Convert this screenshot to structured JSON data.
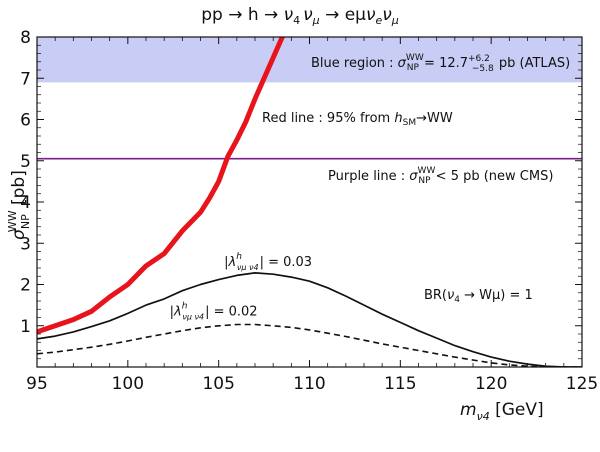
{
  "chart_data": {
    "type": "line",
    "title": "pp → h → ν₄ ν_μ → eμν_e ν_μ",
    "xlabel": "m_ν₄ [GeV]",
    "ylabel": "σ_NP^WW [pb]",
    "xlim": [
      95,
      125
    ],
    "ylim": [
      0,
      8
    ],
    "xticks": [
      95,
      100,
      105,
      110,
      115,
      120,
      125
    ],
    "yticks": [
      1,
      2,
      3,
      4,
      5,
      6,
      7,
      8
    ],
    "bands": [
      {
        "name": "Blue region",
        "y_low": 6.9,
        "y_high": 8.0,
        "color": "#c9ccf4",
        "label": "Blue region : σ_NP^WW = 12.7 +6.2 −5.8 pb (ATLAS)",
        "label_parts": {
          "prefix": "Blue region : ",
          "sym": "σ",
          "sub": "NP",
          "sup": "WW",
          "eq": " = 12.7",
          "up": "+6.2",
          "down": "−5.8",
          "suffix": " pb (ATLAS)"
        }
      }
    ],
    "hlines": [
      {
        "name": "Purple line",
        "y": 5.05,
        "color": "#7a1f86",
        "label": "Purple line : σ_NP^WW < 5 pb (new CMS)",
        "label_parts": {
          "prefix": "Purple line : ",
          "sym": "σ",
          "sub": "NP",
          "sup": "WW",
          "suffix": " < 5 pb (new CMS)"
        }
      }
    ],
    "series": [
      {
        "name": "Red line",
        "color": "#e8141b",
        "style": "solid-thick",
        "label": "Red line : 95% from h_SM → WW",
        "label_parts": {
          "prefix": "Red line : 95% from ",
          "sym": "h",
          "sub": "SM",
          "suffix": "→WW"
        },
        "x": [
          95,
          96,
          97,
          98,
          99,
          100,
          101,
          102,
          103,
          104,
          104.5,
          105,
          105.5,
          106,
          106.5,
          107,
          107.5,
          108,
          108.5
        ],
        "y": [
          0.85,
          1.0,
          1.15,
          1.35,
          1.7,
          2.0,
          2.45,
          2.75,
          3.3,
          3.75,
          4.1,
          4.5,
          5.1,
          5.5,
          5.95,
          6.5,
          7.0,
          7.5,
          8.0
        ]
      },
      {
        "name": "|λ| = 0.03",
        "color": "#111111",
        "style": "solid",
        "label": "|λ^h_νμ ν4| = 0.03",
        "label_parts": {
          "sym": "λ",
          "sup": "h",
          "sub": "νμ ν4",
          "suffix": "| = 0.03"
        },
        "x": [
          95,
          96,
          97,
          98,
          99,
          100,
          101,
          102,
          103,
          104,
          105,
          106,
          107,
          108,
          109,
          110,
          111,
          112,
          113,
          114,
          115,
          116,
          117,
          118,
          119,
          120,
          121,
          122,
          123,
          124,
          125
        ],
        "y": [
          0.68,
          0.75,
          0.85,
          0.98,
          1.12,
          1.3,
          1.5,
          1.65,
          1.85,
          2.0,
          2.12,
          2.22,
          2.28,
          2.25,
          2.18,
          2.08,
          1.92,
          1.72,
          1.5,
          1.28,
          1.08,
          0.88,
          0.7,
          0.52,
          0.37,
          0.24,
          0.14,
          0.07,
          0.02,
          0.0,
          0.0
        ],
        "label_x": 105.3,
        "label_y": 2.45
      },
      {
        "name": "|λ| = 0.02",
        "color": "#111111",
        "style": "dashed",
        "label": "|λ^h_νμ ν4| = 0.02",
        "label_parts": {
          "sym": "λ",
          "sup": "h",
          "sub": "νμ ν4",
          "suffix": "| = 0.02"
        },
        "x": [
          95,
          96,
          97,
          98,
          99,
          100,
          101,
          102,
          103,
          104,
          105,
          106,
          107,
          108,
          109,
          110,
          111,
          112,
          113,
          114,
          115,
          116,
          117,
          118,
          119,
          120,
          121,
          122,
          123,
          124,
          125
        ],
        "y": [
          0.32,
          0.36,
          0.42,
          0.48,
          0.55,
          0.63,
          0.72,
          0.8,
          0.88,
          0.95,
          1.0,
          1.03,
          1.03,
          1.0,
          0.96,
          0.9,
          0.82,
          0.74,
          0.65,
          0.56,
          0.48,
          0.4,
          0.32,
          0.24,
          0.17,
          0.1,
          0.05,
          0.02,
          0.0,
          0.0,
          0.0
        ],
        "label_x": 102.3,
        "label_y": 1.25
      }
    ],
    "annotations": [
      {
        "text": "BR(ν4 → Wμ) = 1",
        "parts": {
          "prefix": "BR(",
          "sym": "ν",
          "sub": "4",
          "suffix": " → Wμ) = 1"
        },
        "x": 116.3,
        "y": 1.65
      }
    ],
    "title_parts": {
      "lead": "pp → h → ",
      "nu4": "ν",
      "nu4_sub": "4",
      "num": "ν",
      "num_sub": "μ",
      "tail": " → eμ",
      "nue": "ν",
      "nue_sub": "e",
      "nu2": "ν",
      "nu2_sub": "μ"
    },
    "xlabel_parts": {
      "sym": "m",
      "sub": "ν4",
      "unit": " [GeV]"
    },
    "ylabel_parts": {
      "sym": "σ",
      "sub": "NP",
      "sup": "WW",
      "unit": " [pb]"
    }
  }
}
